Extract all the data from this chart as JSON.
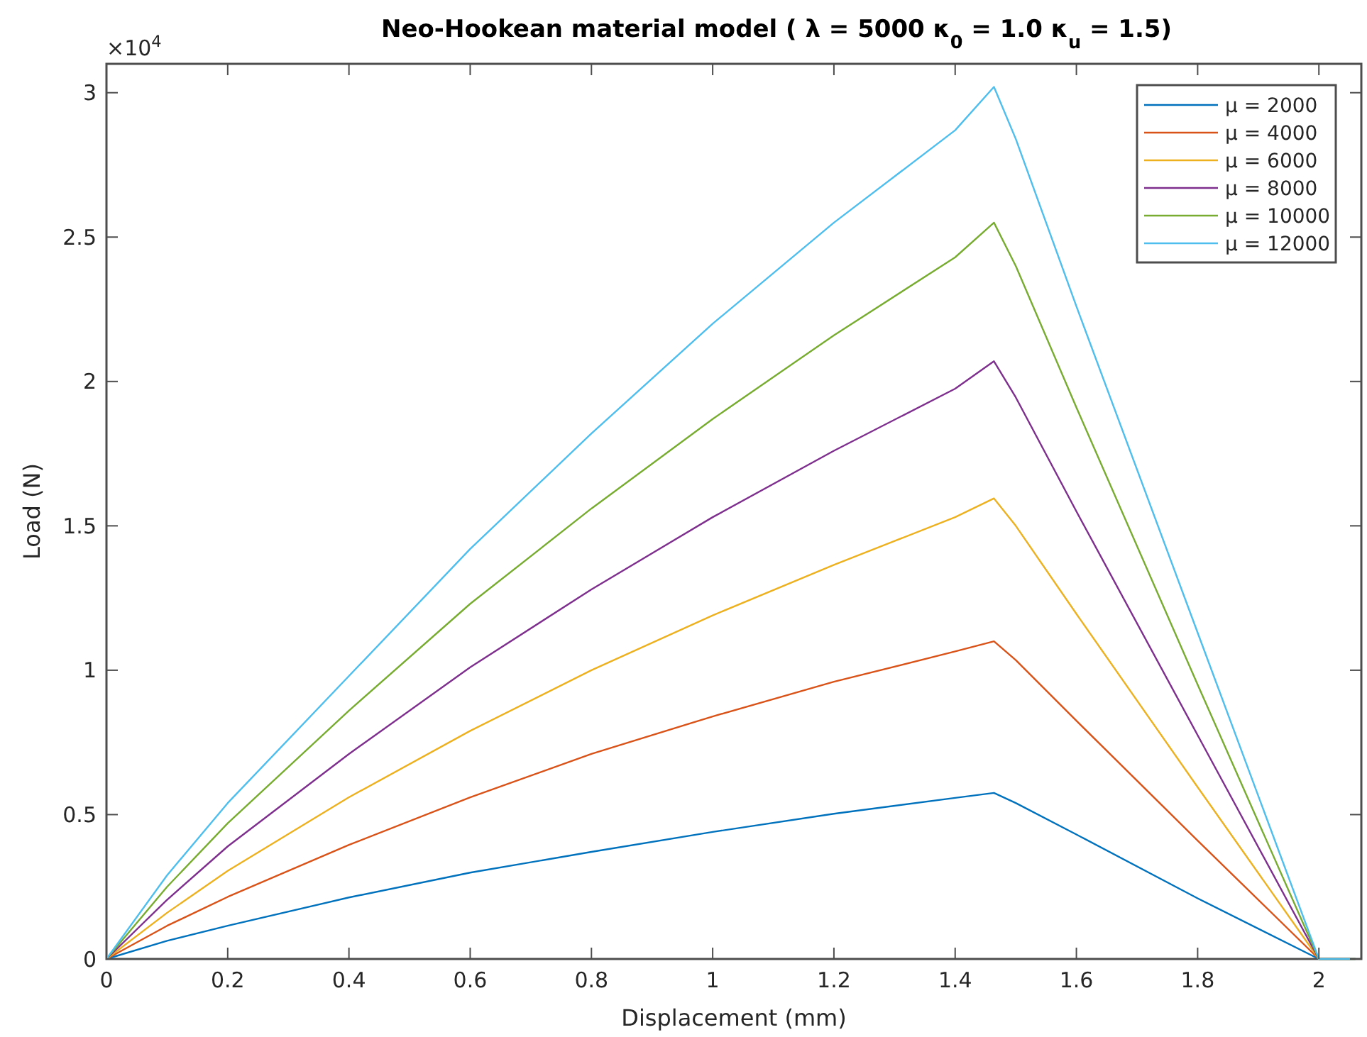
{
  "chart_data": {
    "type": "line",
    "title": "Neo-Hookean material model ( λ = 5000 κ$_{0}$ = 1.0 κ$_{u}$ = 1.5)",
    "xlabel": "Displacement (mm)",
    "ylabel": "Load (N)",
    "annotations": [
      "×10$^{4}$"
    ],
    "x": [
      0,
      0.1,
      0.2,
      0.4,
      0.6,
      0.8,
      1.0,
      1.2,
      1.4,
      1.464,
      1.5,
      1.6,
      1.8,
      2.0,
      2.06
    ],
    "series": [
      {
        "name": "μ = 2000",
        "color": "#0072bd",
        "values": [
          0,
          0.063,
          0.115,
          0.213,
          0.299,
          0.371,
          0.44,
          0.503,
          0.558,
          0.575,
          0.54,
          0.431,
          0.21,
          0,
          0
        ]
      },
      {
        "name": "μ = 4000",
        "color": "#d95319",
        "values": [
          0,
          0.115,
          0.215,
          0.395,
          0.56,
          0.71,
          0.84,
          0.96,
          1.065,
          1.1,
          1.035,
          0.825,
          0.41,
          0,
          0
        ]
      },
      {
        "name": "μ = 6000",
        "color": "#edb120",
        "values": [
          0,
          0.16,
          0.305,
          0.56,
          0.79,
          1.0,
          1.19,
          1.365,
          1.53,
          1.595,
          1.5,
          1.195,
          0.595,
          0,
          0
        ]
      },
      {
        "name": "μ = 8000",
        "color": "#7e2f8e",
        "values": [
          0,
          0.205,
          0.39,
          0.71,
          1.01,
          1.28,
          1.53,
          1.76,
          1.975,
          2.07,
          1.945,
          1.55,
          0.775,
          0,
          0
        ]
      },
      {
        "name": "μ = 10000",
        "color": "#77ac30",
        "values": [
          0,
          0.25,
          0.47,
          0.86,
          1.23,
          1.56,
          1.87,
          2.16,
          2.43,
          2.55,
          2.4,
          1.91,
          0.95,
          0,
          0
        ]
      },
      {
        "name": "μ = 12000",
        "color": "#4dbeee",
        "values": [
          0,
          0.29,
          0.54,
          0.98,
          1.42,
          1.82,
          2.2,
          2.55,
          2.87,
          3.02,
          2.84,
          2.26,
          1.13,
          0,
          0
        ]
      }
    ],
    "xlim": [
      0,
      2.07
    ],
    "xticks": [
      0,
      0.2,
      0.4,
      0.6,
      0.8,
      1,
      1.2,
      1.4,
      1.6,
      1.8,
      2
    ],
    "ylim": [
      0,
      3.1
    ],
    "yticks": [
      0,
      0.5,
      1,
      1.5,
      2,
      2.5,
      3
    ],
    "legend": "top right",
    "line_style": "solid"
  }
}
